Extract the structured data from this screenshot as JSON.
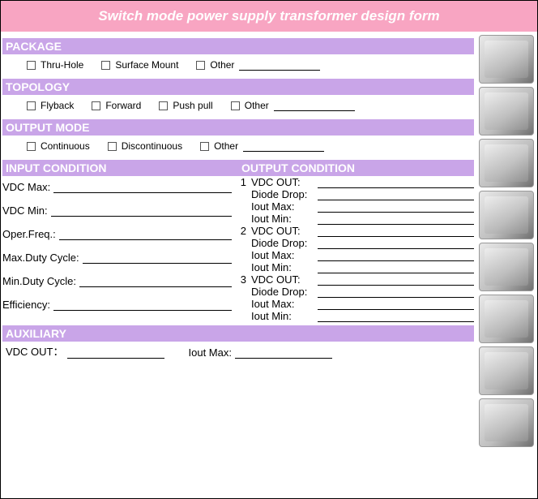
{
  "colors": {
    "title_bg": "#f8a5c2",
    "section_bg": "#c9a5e8",
    "text_white": "#ffffff"
  },
  "title": "Switch mode power supply transformer design form",
  "sections": {
    "package": {
      "header": "PACKAGE",
      "options": [
        "Thru-Hole",
        "Surface Mount",
        "Other"
      ]
    },
    "topology": {
      "header": "TOPOLOGY",
      "options": [
        "Flyback",
        "Forward",
        "Push pull",
        "Other"
      ]
    },
    "output_mode": {
      "header": "OUTPUT MODE",
      "options": [
        "Continuous",
        "Discontinuous",
        "Other"
      ]
    },
    "io_header": {
      "left": "INPUT CONDITION",
      "right": "OUTPUT CONDITION"
    },
    "input_fields": [
      "VDC Max:",
      "VDC Min:",
      "Oper.Freq.:",
      "Max.Duty Cycle:",
      "Min.Duty Cycle:",
      "Efficiency:"
    ],
    "output_groups": [
      {
        "num": "1",
        "fields": [
          "VDC OUT:",
          "Diode Drop:",
          "Iout Max:",
          "Iout Min:"
        ]
      },
      {
        "num": "2",
        "fields": [
          "VDC OUT:",
          "Diode Drop:",
          "Iout Max:",
          "Iout Min:"
        ]
      },
      {
        "num": "3",
        "fields": [
          "VDC OUT:",
          "Diode Drop:",
          "Iout Max:",
          "Iout Min:"
        ]
      }
    ],
    "auxiliary": {
      "header": "AUXILIARY",
      "fields": [
        "VDC OUT：",
        "Iout Max:"
      ]
    }
  },
  "thumb_count": 8
}
